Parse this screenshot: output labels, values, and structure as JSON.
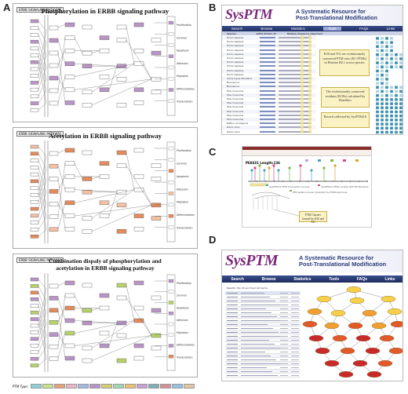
{
  "panels": {
    "a": "A",
    "b": "B",
    "c": "C",
    "d": "D"
  },
  "panel_a": {
    "kegg_badge": "ERBB SIGNALING PATHWAY",
    "title_1": "Phosphorylation in ERBB signaling pathway",
    "title_2": "Acetylation in ERBB signaling pathway",
    "title_3_line1": "Combination dispaly of phosphorylation and",
    "title_3_line2": "acetylation in ERBB signaling pathway",
    "right_labels": [
      "Proliferation",
      "Survival",
      "Apoptosis",
      "Adhesion",
      "Migration",
      "Differentiation",
      "Transcription"
    ],
    "node_color_phos": "#b995c7",
    "node_color_acet": "#e38b5c",
    "node_color_both": "#b8d16a",
    "legend_label": "PTM Type:",
    "legend_colors": [
      "#8fd0d6",
      "#c9e58c",
      "#e6a27a",
      "#e8b8c8",
      "#9fb9e0",
      "#b995c7",
      "#d4d070",
      "#a0d8b0",
      "#f0c070",
      "#c8a0d8",
      "#7fb0b8",
      "#d89098",
      "#98c0e0",
      "#e0c8a0"
    ]
  },
  "panel_b": {
    "slogan_line1": "A Systematic Resource for",
    "slogan_line2": "Post-Translational Modification",
    "nav": [
      "Search",
      "Browse",
      "Statistics",
      "Tools",
      "FAQs",
      "Links"
    ],
    "columns": [
      "Species",
      "SNTM_Protein_ID",
      "Multiple_Sequence_Alignment"
    ],
    "species": [
      "Homo sapiens",
      "Homo sapiens",
      "Homo sapiens",
      "Homo sapiens",
      "Homo sapiens",
      "Homo sapiens",
      "Homo sapiens",
      "Homo sapiens",
      "Homo sapiens",
      "Homo sapiens",
      "Canis lupus familiaris",
      "Bos taurus",
      "Bos taurus",
      "Mus musculus",
      "Mus musculus",
      "Mus musculus",
      "Mus musculus",
      "Mus musculus",
      "Mus musculus",
      "Mus musculus",
      "Mus musculus",
      "Rattus norvegicus",
      "Danio rerio",
      "Danio rerio"
    ],
    "callout_1": "K30 and T51 are evolutionarily conserved PTM sites (EC-PTMs) in Histone H2.1 across species",
    "callout_2": "The evolutionarily conserved residues (ECRs) calculated by RateSites",
    "callout_3": "Record collected by SysPTM2.0"
  },
  "panel_c": {
    "header": "P68431  Length:136",
    "legend_note": "SysPTM2.0 PTMs from public sources",
    "legend_note2": "PTM position known predicted by PTMScope tools",
    "legend_note3": "SysPTM2.0 PTMs curated with MS literature",
    "callout": "PTM Clusters formed by K30 and T41"
  },
  "panel_d": {
    "slogan_line1": "A Systematic Resource for",
    "slogan_line2": "Post-Translational Modification",
    "nav": [
      "Search",
      "Browse",
      "Statistics",
      "Tools",
      "FAQs",
      "Links"
    ],
    "results_title": "Results: Top 20 enriched GO terms"
  }
}
